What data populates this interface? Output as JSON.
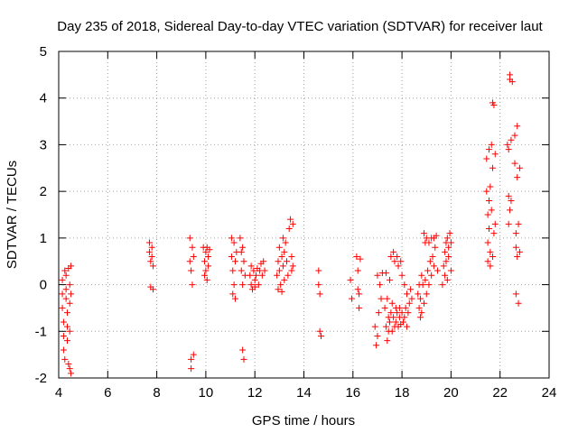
{
  "chart_data": {
    "type": "scatter",
    "title": "Day 235 of 2018, Sidereal Day-to-day VTEC variation (SDTVAR) for receiver laut",
    "xlabel": "GPS time / hours",
    "ylabel": "SDTVAR / TECUs",
    "xlim": [
      4,
      24
    ],
    "ylim": [
      -2,
      5
    ],
    "xticks": [
      4,
      6,
      8,
      10,
      12,
      14,
      16,
      18,
      20,
      22,
      24
    ],
    "yticks": [
      -2,
      -1,
      0,
      1,
      2,
      3,
      4,
      5
    ],
    "grid": true,
    "legend": "none",
    "marker": "plus",
    "color": "#ff0000",
    "series": [
      {
        "name": "SDTVAR",
        "points": [
          [
            4.15,
            0.1
          ],
          [
            4.15,
            -0.2
          ],
          [
            4.15,
            -0.5
          ],
          [
            4.2,
            -0.8
          ],
          [
            4.2,
            -1.1
          ],
          [
            4.2,
            -1.4
          ],
          [
            4.25,
            -1.6
          ],
          [
            4.25,
            0.3
          ],
          [
            4.3,
            0.2
          ],
          [
            4.3,
            -0.1
          ],
          [
            4.3,
            -0.3
          ],
          [
            4.35,
            -0.6
          ],
          [
            4.35,
            -0.9
          ],
          [
            4.35,
            -1.2
          ],
          [
            4.4,
            -1.7
          ],
          [
            4.4,
            0.35
          ],
          [
            4.45,
            0.0
          ],
          [
            4.45,
            -0.4
          ],
          [
            4.45,
            -1.0
          ],
          [
            4.45,
            -1.8
          ],
          [
            4.5,
            0.4
          ],
          [
            4.5,
            -0.2
          ],
          [
            4.5,
            -1.9
          ],
          [
            7.7,
            0.9
          ],
          [
            7.7,
            0.7
          ],
          [
            7.75,
            0.5
          ],
          [
            7.75,
            -0.05
          ],
          [
            7.8,
            0.8
          ],
          [
            7.8,
            0.6
          ],
          [
            7.85,
            0.4
          ],
          [
            7.85,
            -0.1
          ],
          [
            9.35,
            1.0
          ],
          [
            9.35,
            0.5
          ],
          [
            9.4,
            0.3
          ],
          [
            9.4,
            -1.6
          ],
          [
            9.4,
            -1.8
          ],
          [
            9.45,
            0.8
          ],
          [
            9.45,
            0.0
          ],
          [
            9.5,
            0.6
          ],
          [
            9.5,
            -1.5
          ],
          [
            9.9,
            0.8
          ],
          [
            9.95,
            0.5
          ],
          [
            9.95,
            0.2
          ],
          [
            10.0,
            0.7
          ],
          [
            10.0,
            0.3
          ],
          [
            10.05,
            0.8
          ],
          [
            10.05,
            0.1
          ],
          [
            10.1,
            0.6
          ],
          [
            10.1,
            0.4
          ],
          [
            10.15,
            0.75
          ],
          [
            11.05,
            1.0
          ],
          [
            11.05,
            0.6
          ],
          [
            11.1,
            0.3
          ],
          [
            11.1,
            -0.2
          ],
          [
            11.15,
            0.9
          ],
          [
            11.15,
            0.0
          ],
          [
            11.2,
            0.5
          ],
          [
            11.2,
            -0.3
          ],
          [
            11.25,
            0.7
          ],
          [
            11.4,
            1.0
          ],
          [
            11.45,
            0.7
          ],
          [
            11.45,
            0.3
          ],
          [
            11.5,
            0.8
          ],
          [
            11.5,
            0.0
          ],
          [
            11.5,
            -1.4
          ],
          [
            11.55,
            0.5
          ],
          [
            11.55,
            -1.6
          ],
          [
            11.6,
            0.2
          ],
          [
            11.8,
            0.2
          ],
          [
            11.85,
            0.4
          ],
          [
            11.85,
            0.0
          ],
          [
            11.9,
            -0.1
          ],
          [
            11.95,
            0.3
          ],
          [
            12.0,
            0.1
          ],
          [
            12.0,
            -0.05
          ],
          [
            12.05,
            0.2
          ],
          [
            12.1,
            0.35
          ],
          [
            12.15,
            0.0
          ],
          [
            12.2,
            0.3
          ],
          [
            12.25,
            0.45
          ],
          [
            12.3,
            0.2
          ],
          [
            12.35,
            0.5
          ],
          [
            12.4,
            0.3
          ],
          [
            12.9,
            0.2
          ],
          [
            12.95,
            0.5
          ],
          [
            12.95,
            -0.1
          ],
          [
            13.0,
            0.8
          ],
          [
            13.0,
            0.3
          ],
          [
            13.05,
            0.0
          ],
          [
            13.1,
            0.6
          ],
          [
            13.1,
            -0.15
          ],
          [
            13.15,
            1.0
          ],
          [
            13.15,
            0.4
          ],
          [
            13.2,
            0.7
          ],
          [
            13.2,
            0.1
          ],
          [
            13.25,
            0.9
          ],
          [
            13.3,
            0.5
          ],
          [
            13.35,
            0.2
          ],
          [
            13.4,
            1.2
          ],
          [
            13.45,
            1.4
          ],
          [
            13.5,
            0.6
          ],
          [
            13.5,
            0.3
          ],
          [
            13.55,
            1.3
          ],
          [
            13.55,
            0.4
          ],
          [
            14.6,
            0.3
          ],
          [
            14.6,
            0.0
          ],
          [
            14.65,
            -0.2
          ],
          [
            14.65,
            -1.0
          ],
          [
            14.7,
            -1.1
          ],
          [
            15.9,
            0.1
          ],
          [
            15.95,
            -0.3
          ],
          [
            16.15,
            0.6
          ],
          [
            16.2,
            0.3
          ],
          [
            16.2,
            -0.1
          ],
          [
            16.25,
            -0.2
          ],
          [
            16.25,
            -0.5
          ],
          [
            16.3,
            0.55
          ],
          [
            16.9,
            -0.9
          ],
          [
            16.95,
            -1.3
          ],
          [
            17.0,
            -1.1
          ],
          [
            17.0,
            0.2
          ],
          [
            17.05,
            -0.6
          ],
          [
            17.1,
            0.0
          ],
          [
            17.15,
            -0.3
          ],
          [
            17.2,
            0.25
          ],
          [
            17.3,
            -0.5
          ],
          [
            17.35,
            -0.9
          ],
          [
            17.35,
            0.25
          ],
          [
            17.4,
            -1.2
          ],
          [
            17.4,
            -0.3
          ],
          [
            17.45,
            -0.7
          ],
          [
            17.45,
            -1.0
          ],
          [
            17.5,
            0.1
          ],
          [
            17.5,
            -0.8
          ],
          [
            17.55,
            -0.6
          ],
          [
            17.55,
            0.6
          ],
          [
            17.6,
            -1.0
          ],
          [
            17.6,
            -0.4
          ],
          [
            17.65,
            0.7
          ],
          [
            17.65,
            -0.7
          ],
          [
            17.7,
            -0.9
          ],
          [
            17.7,
            0.5
          ],
          [
            17.75,
            -0.5
          ],
          [
            17.75,
            -0.8
          ],
          [
            17.8,
            0.6
          ],
          [
            17.8,
            -0.6
          ],
          [
            17.85,
            -0.9
          ],
          [
            17.85,
            0.4
          ],
          [
            17.9,
            -0.7
          ],
          [
            17.9,
            -0.5
          ],
          [
            17.95,
            0.5
          ],
          [
            17.95,
            -0.85
          ],
          [
            18.0,
            -0.6
          ],
          [
            18.0,
            0.2
          ],
          [
            18.05,
            -0.8
          ],
          [
            18.1,
            -0.7
          ],
          [
            18.1,
            0.0
          ],
          [
            18.15,
            -0.5
          ],
          [
            18.2,
            -0.9
          ],
          [
            18.2,
            -0.2
          ],
          [
            18.25,
            -0.6
          ],
          [
            18.3,
            -0.4
          ],
          [
            18.35,
            -0.1
          ],
          [
            18.4,
            -0.3
          ],
          [
            18.65,
            -0.2
          ],
          [
            18.7,
            -0.5
          ],
          [
            18.7,
            0.0
          ],
          [
            18.75,
            -0.7
          ],
          [
            18.75,
            -0.3
          ],
          [
            18.8,
            0.2
          ],
          [
            18.8,
            -0.6
          ],
          [
            18.85,
            0.0
          ],
          [
            18.9,
            1.1
          ],
          [
            18.9,
            -0.4
          ],
          [
            18.95,
            0.9
          ],
          [
            18.95,
            0.1
          ],
          [
            19.0,
            -0.2
          ],
          [
            19.0,
            1.0
          ],
          [
            19.05,
            0.3
          ],
          [
            19.1,
            0.9
          ],
          [
            19.1,
            0.0
          ],
          [
            19.15,
            0.5
          ],
          [
            19.2,
            1.0
          ],
          [
            19.2,
            0.2
          ],
          [
            19.25,
            0.6
          ],
          [
            19.3,
            1.0
          ],
          [
            19.3,
            0.4
          ],
          [
            19.35,
            0.8
          ],
          [
            19.4,
            1.05
          ],
          [
            19.45,
            0.3
          ],
          [
            19.65,
            0.0
          ],
          [
            19.7,
            0.4
          ],
          [
            19.75,
            0.7
          ],
          [
            19.75,
            0.2
          ],
          [
            19.8,
            0.9
          ],
          [
            19.8,
            0.5
          ],
          [
            19.85,
            1.0
          ],
          [
            19.85,
            0.1
          ],
          [
            19.9,
            0.8
          ],
          [
            19.9,
            0.6
          ],
          [
            19.95,
            1.1
          ],
          [
            20.0,
            0.9
          ],
          [
            20.0,
            0.3
          ],
          [
            21.45,
            2.7
          ],
          [
            21.45,
            2.0
          ],
          [
            21.5,
            1.5
          ],
          [
            21.5,
            0.9
          ],
          [
            21.5,
            0.5
          ],
          [
            21.55,
            2.9
          ],
          [
            21.55,
            1.8
          ],
          [
            21.55,
            1.2
          ],
          [
            21.6,
            2.1
          ],
          [
            21.6,
            0.7
          ],
          [
            21.6,
            0.4
          ],
          [
            21.65,
            3.0
          ],
          [
            21.65,
            1.6
          ],
          [
            21.7,
            2.5
          ],
          [
            21.7,
            0.6
          ],
          [
            21.7,
            3.9
          ],
          [
            21.75,
            1.1
          ],
          [
            21.75,
            3.85
          ],
          [
            21.8,
            2.8
          ],
          [
            21.8,
            1.3
          ],
          [
            22.3,
            3.0
          ],
          [
            22.35,
            2.9
          ],
          [
            22.35,
            1.9
          ],
          [
            22.35,
            1.3
          ],
          [
            22.4,
            4.4
          ],
          [
            22.4,
            4.5
          ],
          [
            22.4,
            1.6
          ],
          [
            22.45,
            3.1
          ],
          [
            22.45,
            1.8
          ],
          [
            22.5,
            4.35
          ],
          [
            22.6,
            3.2
          ],
          [
            22.6,
            2.6
          ],
          [
            22.65,
            1.1
          ],
          [
            22.65,
            0.8
          ],
          [
            22.65,
            -0.2
          ],
          [
            22.7,
            3.4
          ],
          [
            22.7,
            2.3
          ],
          [
            22.7,
            0.6
          ],
          [
            22.75,
            1.3
          ],
          [
            22.75,
            -0.4
          ],
          [
            22.8,
            2.5
          ],
          [
            22.8,
            0.7
          ]
        ]
      }
    ]
  }
}
